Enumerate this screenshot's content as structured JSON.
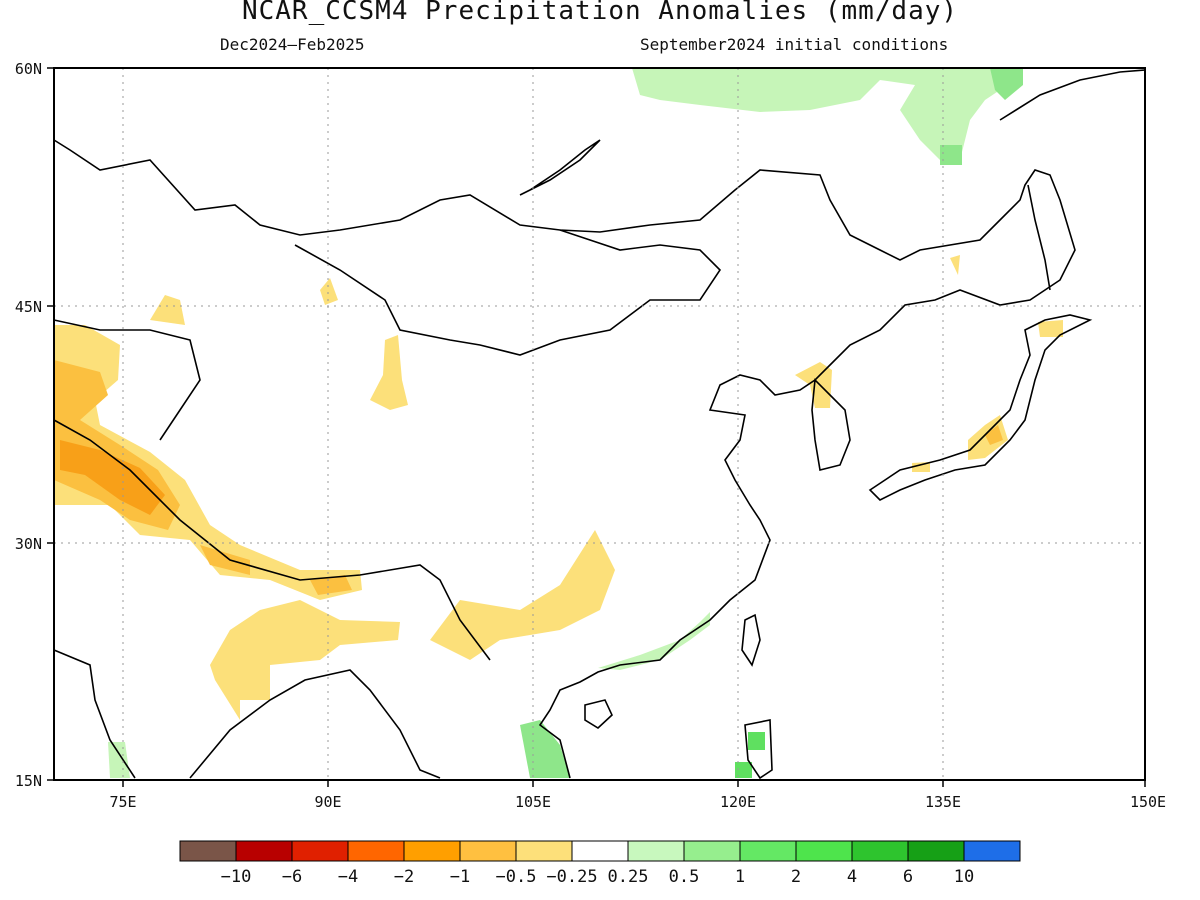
{
  "header": {
    "title": "NCAR_CCSM4 Precipitation Anomalies (mm/day)",
    "period": "Dec2024–Feb2025",
    "init": "September2024 initial conditions"
  },
  "map": {
    "lat_labels": [
      "60N",
      "45N",
      "30N",
      "15N"
    ],
    "lon_labels": [
      "75E",
      "90E",
      "105E",
      "120E",
      "135E",
      "150E"
    ],
    "lat_range": [
      15,
      60
    ],
    "lon_range": [
      70,
      150
    ],
    "grid": "dotted",
    "anomaly_colors": {
      "dry_light": "#fce07a",
      "dry_mid": "#fbc040",
      "dry_strong": "#f8a018",
      "wet_light": "#c6f5b8",
      "wet_mid": "#8ee68a",
      "wet_strong": "#5fe060"
    }
  },
  "legend": {
    "colors": [
      "#7a5548",
      "#b80000",
      "#e02000",
      "#ff6600",
      "#ff9f00",
      "#ffc040",
      "#fde07a",
      "#ffffff",
      "#c8f8be",
      "#96ee8e",
      "#64e864",
      "#4ee44c",
      "#2ec42e",
      "#16a016",
      "#1e6ee8"
    ],
    "labels": [
      "−10",
      "−6",
      "−4",
      "−2",
      "−1",
      "−0.5",
      "−0.25",
      "0.25",
      "0.5",
      "1",
      "2",
      "4",
      "6",
      "10"
    ]
  }
}
